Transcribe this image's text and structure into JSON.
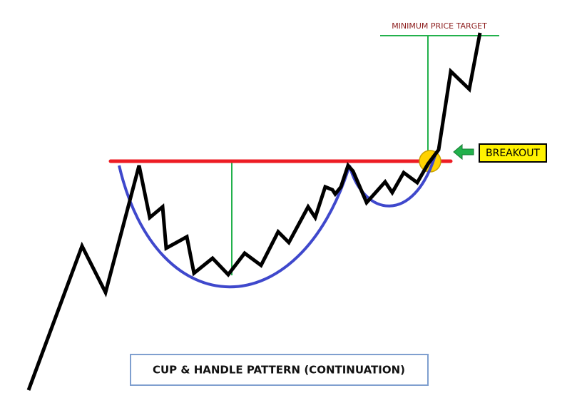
{
  "target_label": "MINIMUM PRICE TARGET",
  "breakout_label": "BREAKOUT",
  "pattern_title": "CUP & HANDLE PATTERN (CONTINUATION)"
}
